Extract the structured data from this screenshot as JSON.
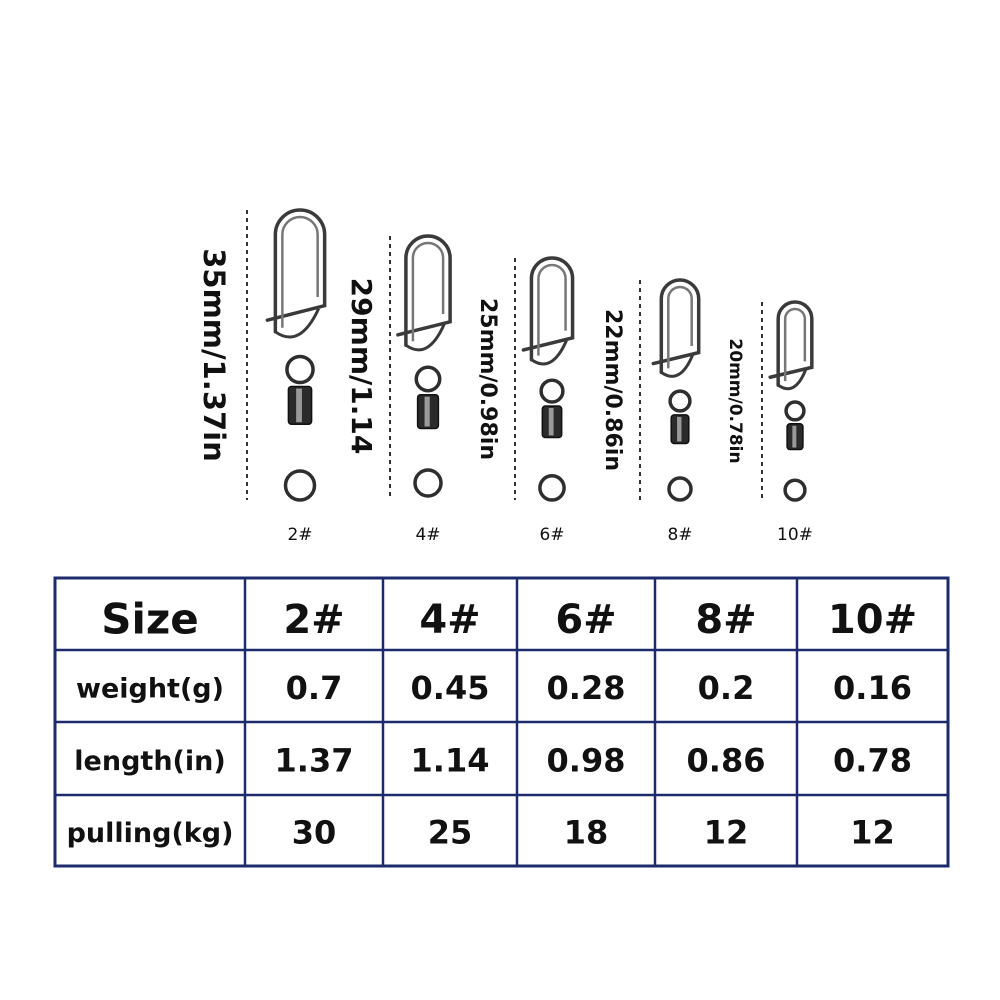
{
  "items": [
    {
      "dimension": "35mm/1.37in",
      "size": "2#"
    },
    {
      "dimension": "29mm/1.14",
      "size": "4#"
    },
    {
      "dimension": "25mm/0.98in",
      "size": "6#"
    },
    {
      "dimension": "22mm/0.86in",
      "size": "8#"
    },
    {
      "dimension": "20mm/0.78in",
      "size": "10#"
    }
  ],
  "table": {
    "header": [
      "Size",
      "2#",
      "4#",
      "6#",
      "8#",
      "10#"
    ],
    "rows": [
      [
        "weight(g)",
        "0.7",
        "0.45",
        "0.28",
        "0.2",
        "0.16"
      ],
      [
        "length(in)",
        "1.37",
        "1.14",
        "0.98",
        "0.86",
        "0.78"
      ],
      [
        "pulling(kg)",
        "30",
        "25",
        "18",
        "12",
        "12"
      ]
    ]
  }
}
